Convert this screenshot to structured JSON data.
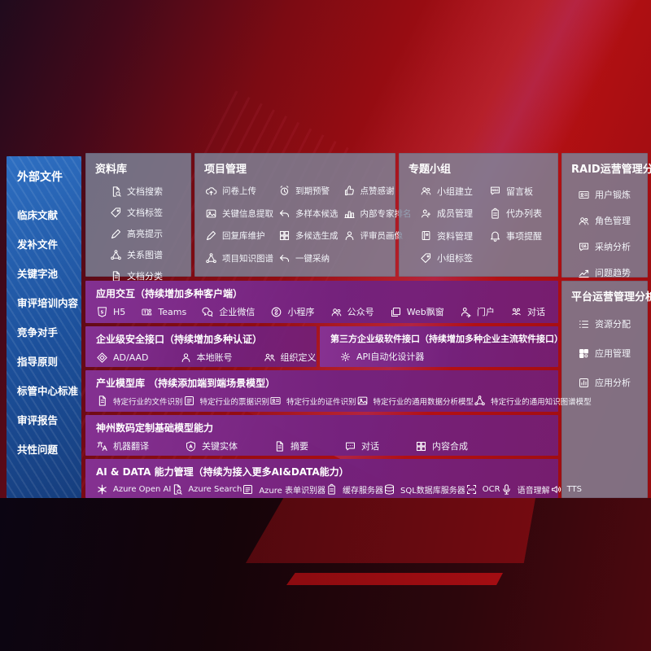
{
  "colors": {
    "background_red": "#a60d12",
    "sidebar_blue": "#1e55a4",
    "panel_slate": "#7c889e",
    "panel_purple": "#76278a",
    "text": "#ffffff"
  },
  "sidebar": {
    "title": "外部文件",
    "items": [
      "临床文献",
      "发补文件",
      "关键字池",
      "审评培训内容",
      "竞争对手",
      "指导原则",
      "标管中心标准",
      "审评报告",
      "共性问题"
    ]
  },
  "sections": {
    "library": {
      "title": "资料库",
      "items": [
        {
          "icon": "doc-search",
          "label": "文档搜索"
        },
        {
          "icon": "tag",
          "label": "文档标签"
        },
        {
          "icon": "pen",
          "label": "高亮提示"
        },
        {
          "icon": "graph",
          "label": "关系图谱"
        },
        {
          "icon": "doc",
          "label": "文档分类"
        }
      ]
    },
    "project": {
      "title": "项目管理",
      "items": [
        {
          "icon": "cloud-up",
          "label": "问卷上传"
        },
        {
          "icon": "image",
          "label": "关键信息提取"
        },
        {
          "icon": "pen",
          "label": "回复库维护"
        },
        {
          "icon": "graph",
          "label": "项目知识图谱"
        },
        {
          "icon": "alarm",
          "label": "到期预警"
        },
        {
          "icon": "reply",
          "label": "多样本候选"
        },
        {
          "icon": "grid",
          "label": "多候选生成"
        },
        {
          "icon": "reply",
          "label": "一键采纳"
        },
        {
          "icon": "thumb",
          "label": "点赞感谢"
        },
        {
          "icon": "rank",
          "label": "内部专家排名"
        },
        {
          "icon": "person",
          "label": "评审员画像"
        }
      ]
    },
    "groups": {
      "title": "专题小组",
      "items": [
        {
          "icon": "people",
          "label": "小组建立"
        },
        {
          "icon": "person-plus",
          "label": "成员管理"
        },
        {
          "icon": "book",
          "label": "资料管理"
        },
        {
          "icon": "tag",
          "label": "小组标签"
        },
        {
          "icon": "bbs",
          "label": "留言板"
        },
        {
          "icon": "clipboard",
          "label": "代办列表"
        },
        {
          "icon": "bell",
          "label": "事项提醒"
        }
      ]
    },
    "raid": {
      "title": "RAID运营管理分析",
      "items": [
        {
          "icon": "idcard",
          "label": "用户锻炼"
        },
        {
          "icon": "people",
          "label": "角色管理"
        },
        {
          "icon": "qa",
          "label": "采纳分析"
        },
        {
          "icon": "trend",
          "label": "问题趋势"
        }
      ]
    },
    "platform": {
      "title": "平台运营管理分析",
      "items": [
        {
          "icon": "list",
          "label": "资源分配"
        },
        {
          "icon": "apps",
          "label": "应用管理"
        },
        {
          "icon": "doc-chart",
          "label": "应用分析"
        }
      ]
    },
    "interaction": {
      "title": "应用交互（持续增加多种客户端）",
      "items": [
        {
          "icon": "h5",
          "label": "H5"
        },
        {
          "icon": "teams",
          "label": "Teams"
        },
        {
          "icon": "wechat",
          "label": "企业微信"
        },
        {
          "icon": "miniapp",
          "label": "小程序"
        },
        {
          "icon": "people",
          "label": "公众号"
        },
        {
          "icon": "browser",
          "label": "Web飘窗"
        },
        {
          "icon": "portal",
          "label": "门户"
        },
        {
          "icon": "chat2",
          "label": "对话"
        }
      ]
    },
    "security": {
      "title": "企业级安全接口（持续增加多种认证）",
      "items": [
        {
          "icon": "diamond",
          "label": "AD/AAD"
        },
        {
          "icon": "person",
          "label": "本地账号"
        },
        {
          "icon": "org",
          "label": "组织定义"
        }
      ]
    },
    "thirdparty": {
      "title": "第三方企业级软件接口（持续增加多种企业主流软件接口）",
      "items": [
        {
          "icon": "gear",
          "label": "API自动化设计器"
        }
      ]
    },
    "models": {
      "title": "产业模型库 （持续添加端到端场景模型）",
      "items": [
        {
          "icon": "doc",
          "label": "特定行业的文件识别"
        },
        {
          "icon": "form",
          "label": "特定行业的票据识别"
        },
        {
          "icon": "idcard",
          "label": "特定行业的证件识别"
        },
        {
          "icon": "image",
          "label": "特定行业的通用数据分析模型"
        },
        {
          "icon": "graph",
          "label": "特定行业的通用知识图谱模型"
        }
      ]
    },
    "base_models": {
      "title": "神州数码定制基础模型能力",
      "items": [
        {
          "icon": "translate",
          "label": "机器翻译"
        },
        {
          "icon": "shield",
          "label": "关键实体"
        },
        {
          "icon": "doc",
          "label": "摘要"
        },
        {
          "icon": "chat",
          "label": "对话"
        },
        {
          "icon": "grid",
          "label": "内容合成"
        }
      ]
    },
    "ai_data": {
      "title": "AI & DATA 能力管理（持续为接入更多AI&DATA能力）",
      "items": [
        {
          "icon": "flower",
          "label": "Azure Open AI"
        },
        {
          "icon": "doc-search",
          "label": "Azure Search"
        },
        {
          "icon": "form",
          "label": "Azure 表单识别器"
        },
        {
          "icon": "clipboard",
          "label": "缓存服务器"
        },
        {
          "icon": "database",
          "label": "SQL数据库服务器"
        },
        {
          "icon": "ocr",
          "label": "OCR"
        },
        {
          "icon": "mic",
          "label": "语音理解"
        },
        {
          "icon": "tts",
          "label": "TTS"
        }
      ]
    }
  }
}
